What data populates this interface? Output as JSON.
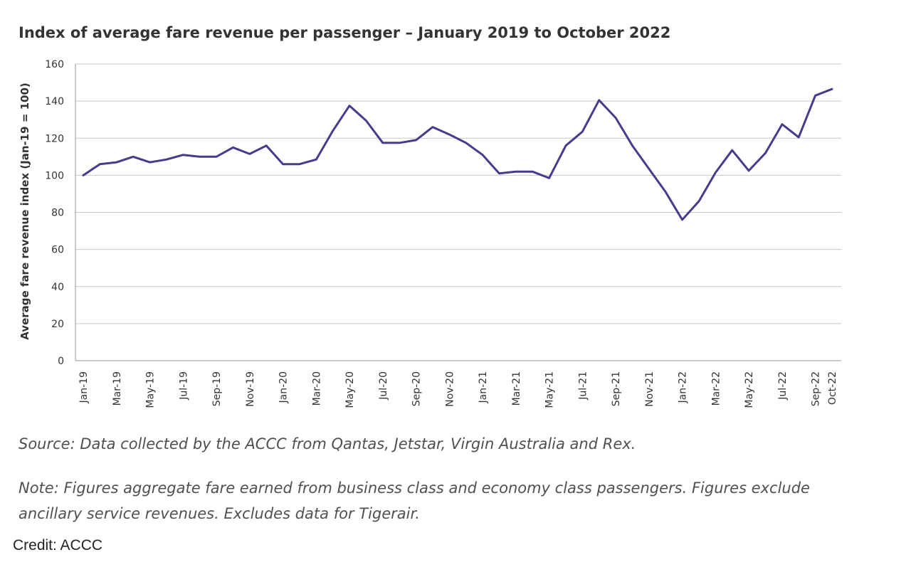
{
  "chart_data": {
    "type": "line",
    "title": "Index of average fare revenue per passenger – January 2019 to October 2022",
    "xlabel": "",
    "ylabel": "Average fare revenue index (Jan-19 = 100)",
    "ylim": [
      0,
      160
    ],
    "yticks": [
      0,
      20,
      40,
      60,
      80,
      100,
      120,
      140,
      160
    ],
    "grid": true,
    "legend": "none",
    "x": [
      "Jan-19",
      "Feb-19",
      "Mar-19",
      "Apr-19",
      "May-19",
      "Jun-19",
      "Jul-19",
      "Aug-19",
      "Sep-19",
      "Oct-19",
      "Nov-19",
      "Dec-19",
      "Jan-20",
      "Feb-20",
      "Mar-20",
      "Apr-20",
      "May-20",
      "Jun-20",
      "Jul-20",
      "Aug-20",
      "Sep-20",
      "Oct-20",
      "Nov-20",
      "Dec-20",
      "Jan-21",
      "Feb-21",
      "Mar-21",
      "Apr-21",
      "May-21",
      "Jun-21",
      "Jul-21",
      "Aug-21",
      "Sep-21",
      "Oct-21",
      "Nov-21",
      "Dec-21",
      "Jan-22",
      "Feb-22",
      "Mar-22",
      "Apr-22",
      "May-22",
      "Jun-22",
      "Jul-22",
      "Aug-22",
      "Sep-22",
      "Oct-22"
    ],
    "x_tick_labels": [
      "Jan-19",
      "Mar-19",
      "May-19",
      "Jul-19",
      "Sep-19",
      "Nov-19",
      "Jan-20",
      "Mar-20",
      "May-20",
      "Jul-20",
      "Sep-20",
      "Nov-20",
      "Jan-21",
      "Mar-21",
      "May-21",
      "Jul-21",
      "Sep-21",
      "Nov-21",
      "Jan-22",
      "Mar-22",
      "May-22",
      "Jul-22",
      "Sep-22",
      "Oct-22"
    ],
    "series": [
      {
        "name": "Average fare revenue index",
        "color": "#4a3a8c",
        "values": [
          100,
          106,
          107,
          110,
          107,
          108.5,
          111,
          110,
          110,
          115,
          111.5,
          116,
          106,
          106,
          108.5,
          124,
          137.5,
          129.5,
          117.5,
          117.5,
          119,
          126,
          122,
          117.5,
          111,
          101,
          102,
          102,
          98.5,
          116,
          123.5,
          140.5,
          131,
          116,
          103.5,
          91,
          76,
          86,
          101.5,
          113.5,
          102.5,
          112,
          127.5,
          120.5,
          143,
          146.5
        ]
      }
    ]
  },
  "source_text": "Source: Data collected by the ACCC from Qantas, Jetstar, Virgin Australia and Rex.",
  "note_text": "Note: Figures aggregate fare earned from business class and economy class passengers. Figures exclude ancillary service revenues. Excludes data for Tigerair.",
  "credit_text": "Credit: ACCC"
}
